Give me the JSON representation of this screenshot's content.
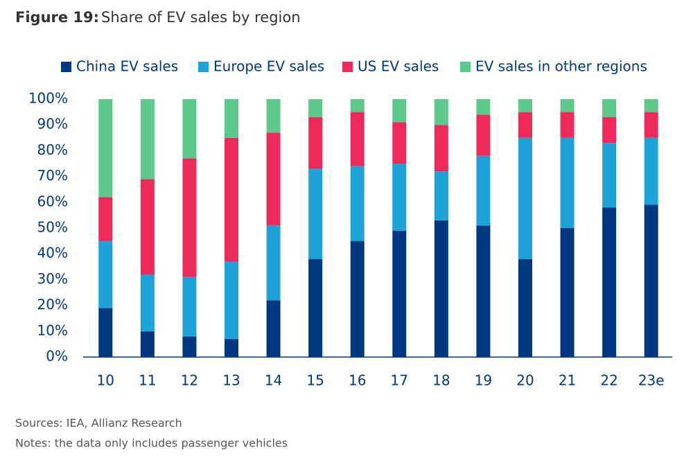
{
  "chart_data": {
    "type": "stacked_bar",
    "title_label": "Figure 19:",
    "title": "Share of EV sales by region",
    "categories": [
      "10",
      "11",
      "12",
      "13",
      "14",
      "15",
      "16",
      "17",
      "18",
      "19",
      "20",
      "21",
      "22",
      "23e"
    ],
    "series": [
      {
        "name": "China EV sales",
        "color": "#003781",
        "values": [
          19,
          10,
          8,
          7,
          22,
          38,
          45,
          49,
          53,
          51,
          38,
          50,
          58,
          59
        ]
      },
      {
        "name": "Europe EV sales",
        "color": "#1ea3d9",
        "values": [
          26,
          22,
          23,
          30,
          29,
          35,
          29,
          26,
          19,
          27,
          47,
          35,
          25,
          26
        ]
      },
      {
        "name": "US EV sales",
        "color": "#ee2a5b",
        "values": [
          17,
          37,
          46,
          48,
          36,
          20,
          21,
          16,
          18,
          16,
          10,
          10,
          10,
          10
        ]
      },
      {
        "name": "EV sales in other regions",
        "color": "#5cc98b",
        "values": [
          38,
          31,
          23,
          15,
          13,
          7,
          5,
          9,
          10,
          6,
          5,
          5,
          7,
          5
        ]
      }
    ],
    "ylim": [
      0,
      100
    ],
    "yticks": [
      {
        "value": 0,
        "label": "0%"
      },
      {
        "value": 10,
        "label": "10%"
      },
      {
        "value": 20,
        "label": "20%"
      },
      {
        "value": 30,
        "label": "30%"
      },
      {
        "value": 40,
        "label": "40%"
      },
      {
        "value": 50,
        "label": "50%"
      },
      {
        "value": 60,
        "label": "60%"
      },
      {
        "value": 70,
        "label": "70%"
      },
      {
        "value": 80,
        "label": "80%"
      },
      {
        "value": 90,
        "label": "90%"
      },
      {
        "value": 100,
        "label": "100%"
      }
    ],
    "grid": false,
    "sources": "Sources: IEA, Allianz Research",
    "notes": "Notes: the data only includes passenger vehicles"
  }
}
